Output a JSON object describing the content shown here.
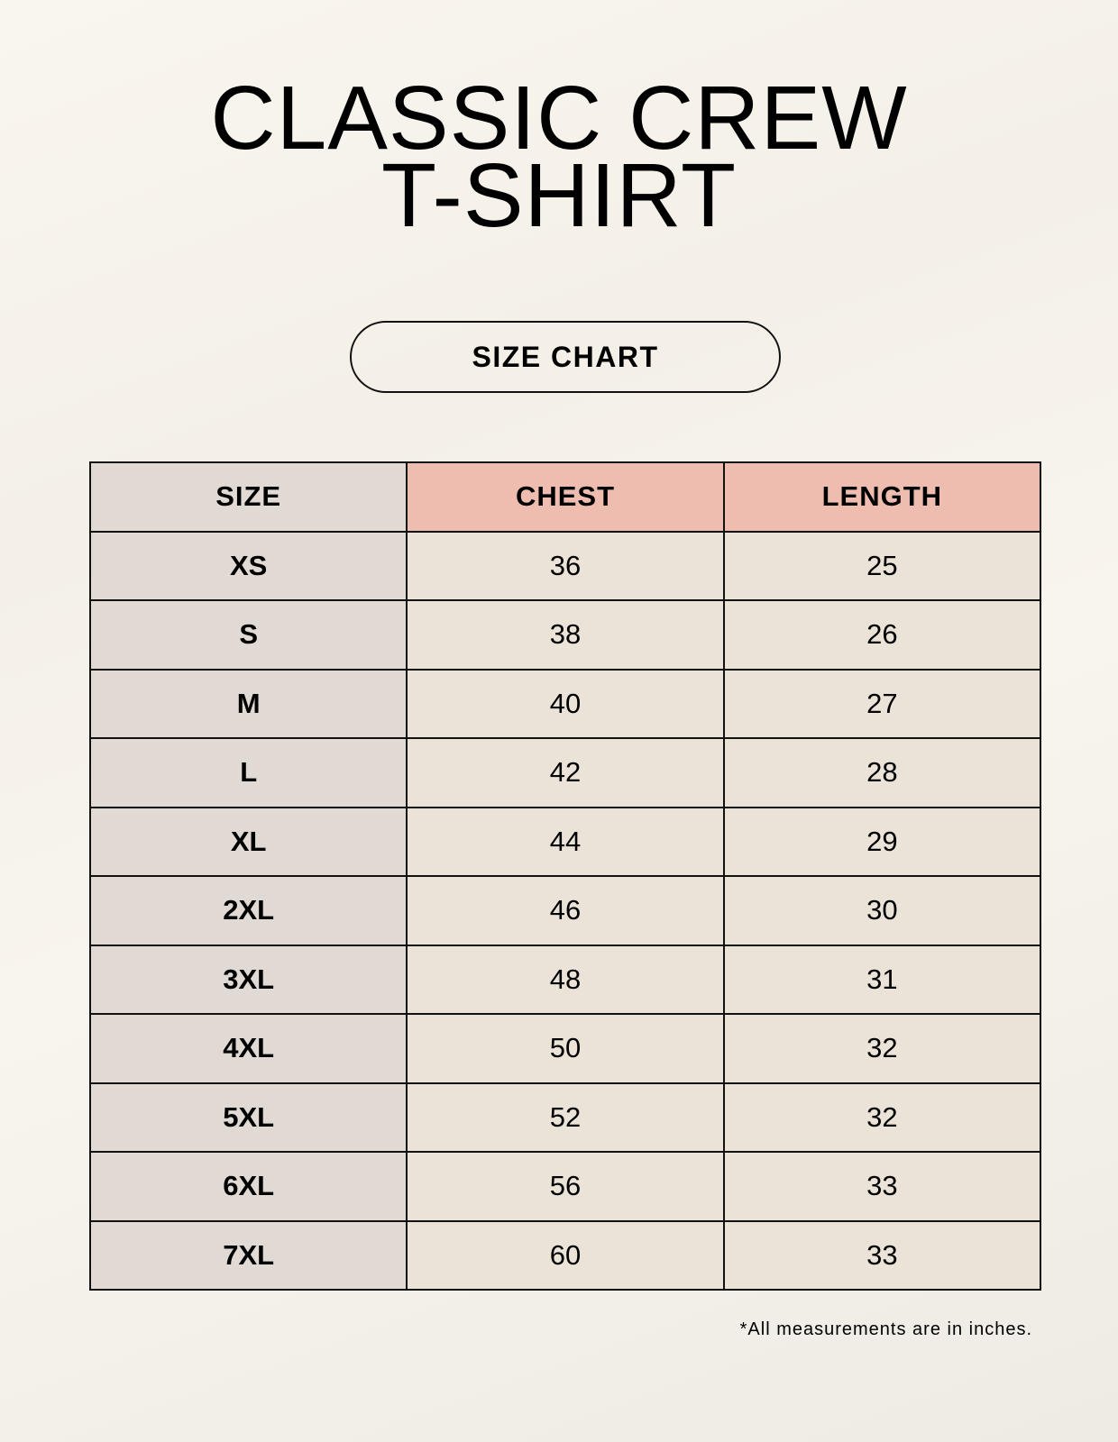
{
  "title_lines": [
    "CLASSIC CREW",
    "T-SHIRT"
  ],
  "badge": "SIZE CHART",
  "colors": {
    "size_column": "#e1d9d3",
    "header_accent": "#eebdaf",
    "value_cells": "#ebe3d8"
  },
  "table": {
    "headers": [
      "SIZE",
      "CHEST",
      "LENGTH"
    ],
    "rows": [
      [
        "XS",
        "36",
        "25"
      ],
      [
        "S",
        "38",
        "26"
      ],
      [
        "M",
        "40",
        "27"
      ],
      [
        "L",
        "42",
        "28"
      ],
      [
        "XL",
        "44",
        "29"
      ],
      [
        "2XL",
        "46",
        "30"
      ],
      [
        "3XL",
        "48",
        "31"
      ],
      [
        "4XL",
        "50",
        "32"
      ],
      [
        "5XL",
        "52",
        "32"
      ],
      [
        "6XL",
        "56",
        "33"
      ],
      [
        "7XL",
        "60",
        "33"
      ]
    ]
  },
  "footnote": "*All measurements are in inches."
}
